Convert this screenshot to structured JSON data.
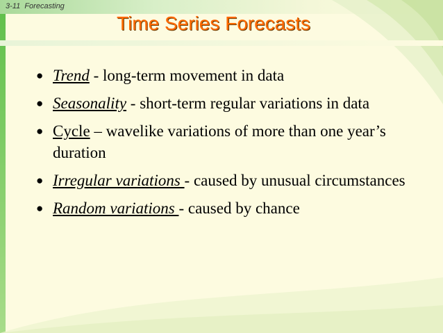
{
  "header": {
    "slide_number": "3-11",
    "section": "Forecasting"
  },
  "title": "Time Series Forecasts",
  "bullets": [
    {
      "term": "Trend",
      "desc": " - long-term movement in data"
    },
    {
      "term": "Seasonality",
      "desc": " - short-term regular variations in data"
    },
    {
      "term": "Cycle",
      "desc": " – wavelike variations of more than one year’s duration"
    },
    {
      "term": "Irregular variations ",
      "desc": "- caused by unusual circumstances"
    },
    {
      "term": "Random variations ",
      "desc": "- caused by chance"
    }
  ],
  "colors": {
    "title": "#ff6a00",
    "background": "#fdfbe0",
    "accent_green": "#5fbf4a"
  }
}
